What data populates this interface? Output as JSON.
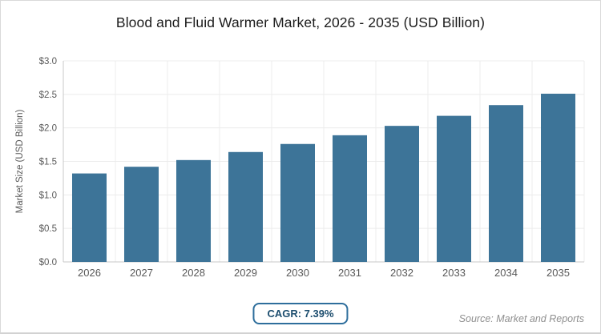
{
  "title": "Blood and Fluid Warmer Market, 2026 - 2035 (USD Billion)",
  "chart_data": {
    "type": "bar",
    "title": "Blood and Fluid Warmer Market, 2026 - 2035 (USD Billion)",
    "categories": [
      "2026",
      "2027",
      "2028",
      "2029",
      "2030",
      "2031",
      "2032",
      "2033",
      "2034",
      "2035"
    ],
    "values": [
      1.32,
      1.42,
      1.52,
      1.64,
      1.76,
      1.89,
      2.03,
      2.18,
      2.34,
      2.51
    ],
    "xlabel": "",
    "ylabel": "Market Size (USD Billion)",
    "ylim": [
      0,
      3.0
    ],
    "ytick_step": 0.5,
    "ytick_prefix": "$",
    "grid": "both",
    "legend": "none"
  },
  "footer": {
    "cagr_label": "CAGR: 7.39%",
    "source": "Source: Market and Reports"
  },
  "colors": {
    "bar": "#3D7498",
    "badge_border": "#2E6E9C",
    "badge_text": "#1C4D6E",
    "gridline": "#ececec",
    "spine": "#c9c9c9",
    "tick_text": "#595959",
    "source_text": "#8f8f8f"
  }
}
